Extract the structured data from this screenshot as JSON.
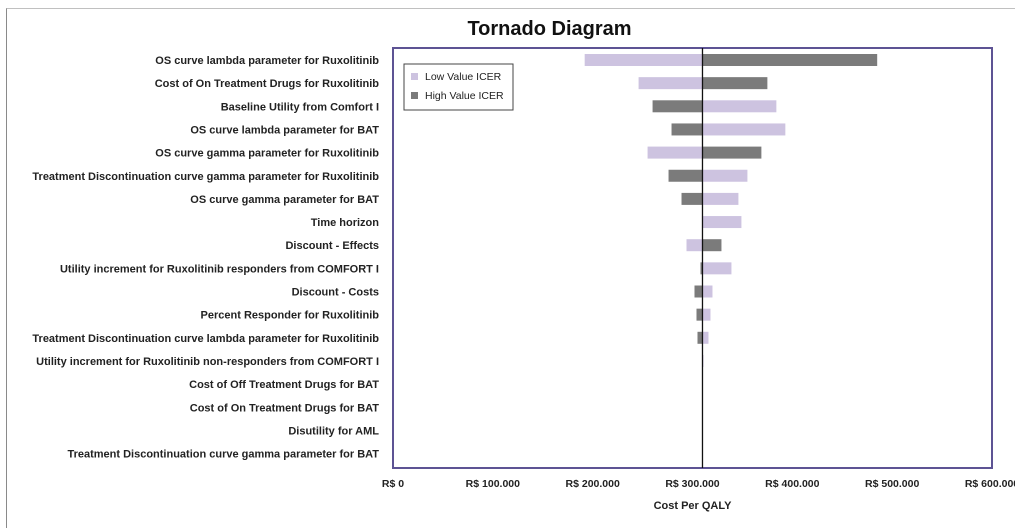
{
  "chart_data": {
    "type": "bar",
    "title": "Tornado Diagram",
    "xlabel": "Cost Per QALY",
    "ylabel": "",
    "base_value": 310000,
    "xlim": [
      0,
      600000
    ],
    "x_ticks": [
      0,
      100000,
      200000,
      300000,
      400000,
      500000,
      600000
    ],
    "x_tick_labels": [
      "R$ 0",
      "R$ 100.000",
      "R$ 200.000",
      "R$ 300.000",
      "R$ 400.000",
      "R$ 500.000",
      "R$ 600.000"
    ],
    "legend_position": "top-left",
    "colors": {
      "low": "#cdc3e0",
      "high": "#7b7b7b",
      "frame": "#5d5394",
      "baseline": "#111111"
    },
    "series": [
      {
        "name": "Low Value ICER",
        "key": "low"
      },
      {
        "name": "High Value ICER",
        "key": "high"
      }
    ],
    "categories": [
      "OS curve lambda parameter for Ruxolitinib",
      "Cost of On Treatment Drugs for Ruxolitinib",
      "Baseline Utility from Comfort I",
      "OS curve lambda parameter for BAT",
      "OS curve gamma parameter for Ruxolitinib",
      "Treatment Discontinuation curve gamma parameter for Ruxolitinib",
      "OS curve gamma parameter for BAT",
      "Time horizon",
      "Discount - Effects",
      "Utility increment for Ruxolitinib responders from COMFORT I",
      "Discount - Costs",
      "Percent Responder for Ruxolitinib",
      "Treatment Discontinuation curve lambda parameter for Ruxolitinib",
      "Utility increment for Ruxolitinib non-responders from COMFORT I",
      "Cost of Off Treatment Drugs for BAT",
      "Cost of On Treatment Drugs for BAT",
      "Disutility for AML",
      "Treatment Discontinuation curve gamma parameter for BAT"
    ],
    "low_values": [
      192000,
      246000,
      384000,
      393000,
      255000,
      355000,
      346000,
      349000,
      294000,
      339000,
      320000,
      318000,
      316000,
      311000,
      310000,
      310000,
      310000,
      310000
    ],
    "high_values": [
      485000,
      375000,
      260000,
      279000,
      369000,
      276000,
      289000,
      310000,
      329000,
      308000,
      302000,
      304000,
      305000,
      310000,
      310000,
      310000,
      310000,
      310000
    ]
  }
}
